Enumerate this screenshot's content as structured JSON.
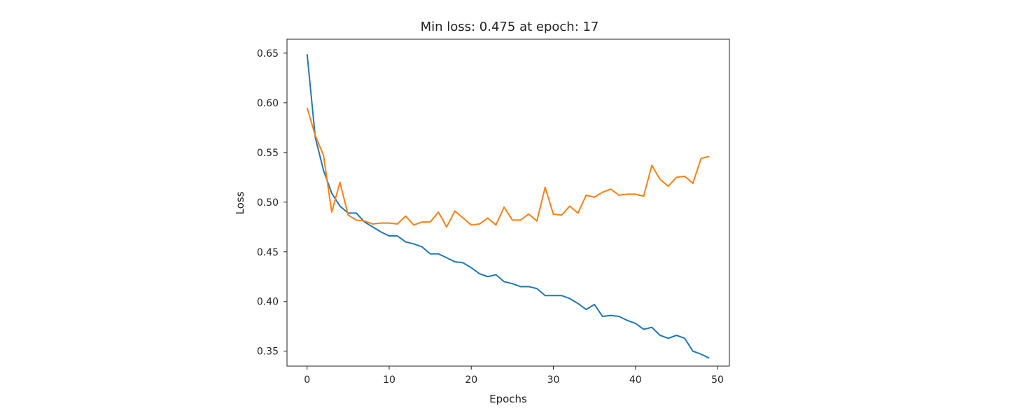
{
  "chart_data": {
    "type": "line",
    "title": "Min loss: 0.475 at epoch: 17",
    "xlabel": "Epochs",
    "ylabel": "Loss",
    "xlim": [
      -2.45,
      51.45
    ],
    "ylim": [
      0.335,
      0.664
    ],
    "xticks": [
      {
        "value": 0,
        "label": "0"
      },
      {
        "value": 10,
        "label": "10"
      },
      {
        "value": 20,
        "label": "20"
      },
      {
        "value": 30,
        "label": "30"
      },
      {
        "value": 40,
        "label": "40"
      },
      {
        "value": 50,
        "label": "50"
      }
    ],
    "yticks": [
      {
        "value": 0.35,
        "label": "0.35"
      },
      {
        "value": 0.4,
        "label": "0.40"
      },
      {
        "value": 0.45,
        "label": "0.45"
      },
      {
        "value": 0.5,
        "label": "0.50"
      },
      {
        "value": 0.55,
        "label": "0.55"
      },
      {
        "value": 0.6,
        "label": "0.60"
      },
      {
        "value": 0.65,
        "label": "0.65"
      }
    ],
    "grid": false,
    "legend": false,
    "x": [
      0,
      1,
      2,
      3,
      4,
      5,
      6,
      7,
      8,
      9,
      10,
      11,
      12,
      13,
      14,
      15,
      16,
      17,
      18,
      19,
      20,
      21,
      22,
      23,
      24,
      25,
      26,
      27,
      28,
      29,
      30,
      31,
      32,
      33,
      34,
      35,
      36,
      37,
      38,
      39,
      40,
      41,
      42,
      43,
      44,
      45,
      46,
      47,
      48,
      49
    ],
    "series": [
      {
        "color": "#1f77b4",
        "values": [
          0.649,
          0.565,
          0.532,
          0.509,
          0.496,
          0.489,
          0.489,
          0.48,
          0.475,
          0.47,
          0.466,
          0.466,
          0.46,
          0.458,
          0.455,
          0.448,
          0.448,
          0.444,
          0.44,
          0.439,
          0.434,
          0.428,
          0.425,
          0.427,
          0.42,
          0.418,
          0.415,
          0.415,
          0.413,
          0.406,
          0.406,
          0.406,
          0.403,
          0.398,
          0.392,
          0.397,
          0.385,
          0.386,
          0.385,
          0.381,
          0.378,
          0.372,
          0.374,
          0.366,
          0.363,
          0.366,
          0.363,
          0.35,
          0.347,
          0.343
        ]
      },
      {
        "color": "#ff7f0e",
        "values": [
          0.595,
          0.567,
          0.547,
          0.49,
          0.52,
          0.487,
          0.482,
          0.481,
          0.478,
          0.479,
          0.479,
          0.478,
          0.486,
          0.477,
          0.48,
          0.48,
          0.49,
          0.475,
          0.491,
          0.484,
          0.477,
          0.478,
          0.484,
          0.477,
          0.495,
          0.482,
          0.482,
          0.488,
          0.481,
          0.515,
          0.488,
          0.487,
          0.496,
          0.489,
          0.507,
          0.505,
          0.51,
          0.513,
          0.507,
          0.508,
          0.508,
          0.506,
          0.537,
          0.523,
          0.516,
          0.525,
          0.526,
          0.519,
          0.544,
          0.546
        ]
      }
    ]
  }
}
